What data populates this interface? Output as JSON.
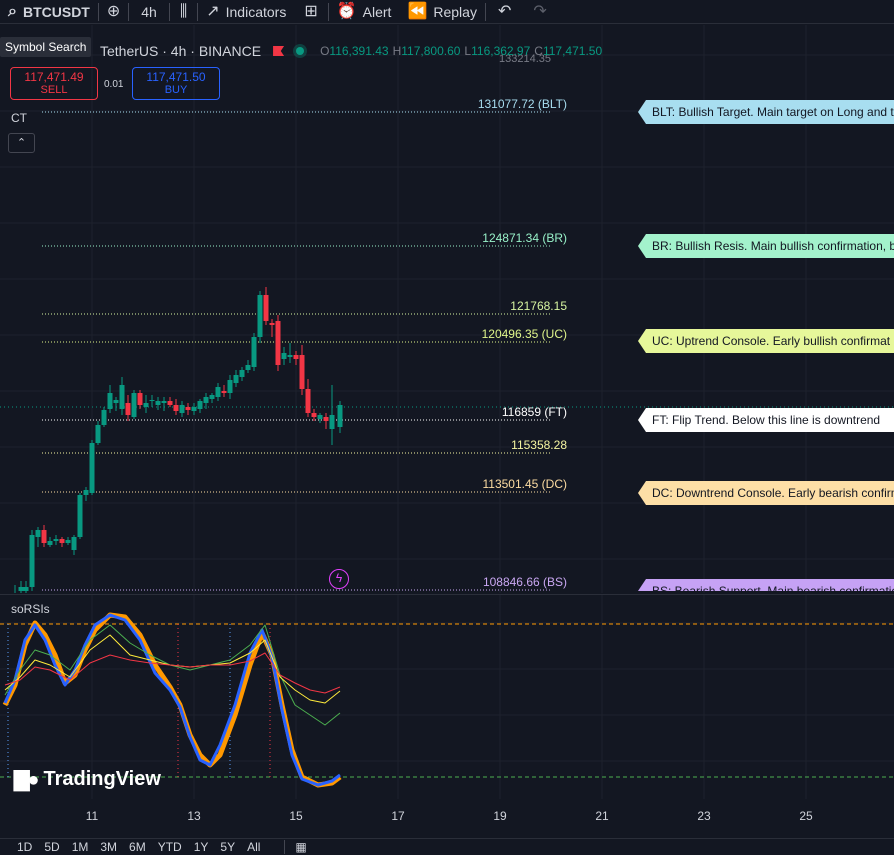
{
  "toolbar": {
    "symbol": "BTCUSDT",
    "interval": "4h",
    "indicators": "Indicators",
    "alert": "Alert",
    "replay": "Replay"
  },
  "tooltip": "Symbol Search",
  "legend": {
    "title": "TetherUS · 4h · BINANCE",
    "open_label": "O",
    "open": "116,391.43",
    "high_label": "H",
    "high": "117,800.60",
    "low_label": "L",
    "low": "116,362.97",
    "close_label": "C",
    "close": "117,471.50"
  },
  "trade": {
    "sell_price": "117,471.49",
    "sell_label": "SELL",
    "buy_price": "117,471.50",
    "buy_label": "BUY",
    "spread": "0.01"
  },
  "ct_label": "CT",
  "top_price": "133214.35",
  "levels": [
    {
      "label": "131077.72 (BLT)",
      "color": "#a7dcef",
      "tag": "BLT: Bullish Target. Main target on Long and t",
      "tag_color": "#a8def0"
    },
    {
      "label": "124871.34 (BR)",
      "color": "#98f2c9",
      "tag": "BR: Bullish Resis. Main bullish confirmation, b",
      "tag_color": "#a3f2cc"
    },
    {
      "label": "121768.15",
      "color": "#d7f5a1",
      "tag": "",
      "tag_color": ""
    },
    {
      "label": "120496.35 (UC)",
      "color": "#dff58b",
      "tag": "UC: Uptrend Console. Early bullish confirmat",
      "tag_color": "#e6f79a"
    },
    {
      "label": "116859 (FT)",
      "color": "#ffffff",
      "tag": "FT: Flip Trend. Below this line is downtrend",
      "tag_color": "#ffffff"
    },
    {
      "label": "115358.28",
      "color": "#f5f5a1",
      "tag": "",
      "tag_color": ""
    },
    {
      "label": "113501.45 (DC)",
      "color": "#fcdca2",
      "tag": "DC: Downtrend Console. Early bearish confirm",
      "tag_color": "#fddfa6"
    },
    {
      "label": "108846.66 (BS)",
      "color": "#c9a7f2",
      "tag": "BS: Bearish Support. Main bearish confirmatio",
      "tag_color": "#c6a2f5"
    }
  ],
  "rsi_title": "soRSIs",
  "logo": "TradingView",
  "time_ticks": [
    "11",
    "13",
    "15",
    "17",
    "19",
    "21",
    "23",
    "25"
  ],
  "ranges": [
    "1D",
    "5D",
    "1M",
    "3M",
    "6M",
    "YTD",
    "1Y",
    "5Y",
    "All"
  ],
  "colors": {
    "up": "#089981",
    "down": "#f23645",
    "bg": "#131722"
  }
}
